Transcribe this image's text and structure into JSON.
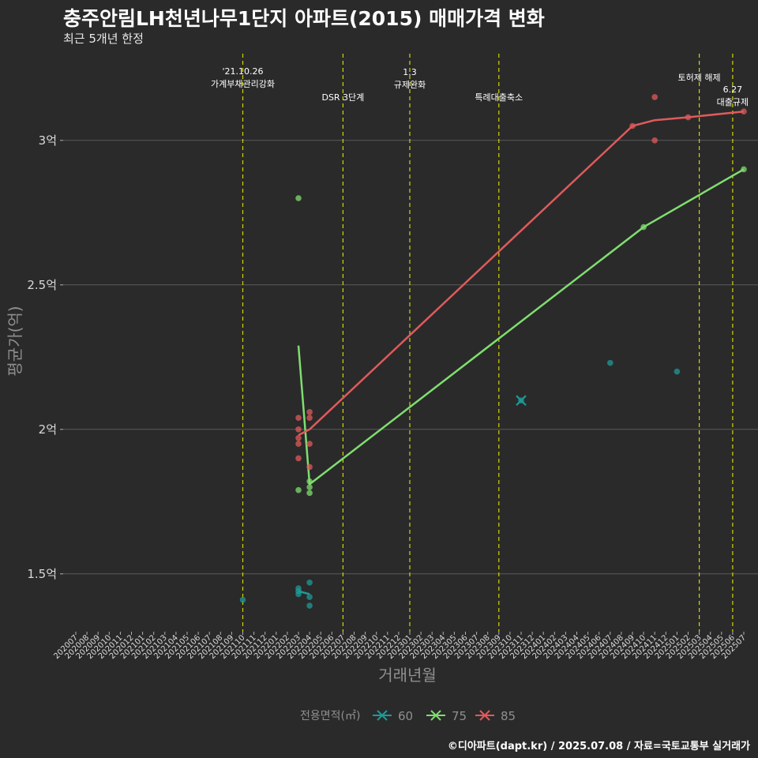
{
  "title": "충주안림LH천년나무1단지 아파트(2015) 매매가격 변화",
  "subtitle": "최근 5개년 한정",
  "caption": "©디아파트(dapt.kr) / 2025.07.08 / 자료=국토교통부 실거래가",
  "colors": {
    "background": "#2a2a2b",
    "grid": "#5a5a5a",
    "event_line": "#d4d400",
    "s60": "#1f9a96",
    "s75": "#7fde6e",
    "s85": "#e05a5a"
  },
  "chart_data": {
    "type": "line",
    "title": "충주안림LH천년나무1단지 아파트(2015) 매매가격 변화",
    "subtitle": "최근 5개년 한정",
    "xlabel": "거래년월",
    "ylabel": "평균가(억)",
    "ylim": [
      1.3,
      3.3
    ],
    "yticks": [
      1.5,
      2,
      2.5,
      3
    ],
    "yticklabels": [
      "1.5억",
      "2억",
      "2.5억",
      "3억"
    ],
    "xticks": [
      "202007",
      "202008",
      "202009",
      "202010",
      "202011",
      "202012",
      "202101",
      "202102",
      "202103",
      "202104",
      "202105",
      "202106",
      "202107",
      "202108",
      "202109",
      "202110",
      "202111",
      "202112",
      "202201",
      "202202",
      "202203",
      "202204",
      "202205",
      "202206",
      "202207",
      "202208",
      "202209",
      "202210",
      "202211",
      "202212",
      "202301",
      "202302",
      "202303",
      "202304",
      "202305",
      "202306",
      "202307",
      "202308",
      "202309",
      "202310",
      "202311",
      "202312",
      "202401",
      "202402",
      "202403",
      "202404",
      "202405",
      "202406",
      "202407",
      "202408",
      "202409",
      "202410",
      "202411",
      "202412",
      "202501",
      "202502",
      "202503",
      "202504",
      "202505",
      "202506",
      "202507"
    ],
    "legend_title": "전용면적(㎡)",
    "legend_position": "bottom",
    "series": [
      {
        "name": "60",
        "color": "#1f9a96",
        "line": [
          {
            "x": "202203",
            "y": 1.44
          },
          {
            "x": "202204",
            "y": 1.43
          }
        ],
        "points": [
          {
            "x": "202110",
            "y": 1.41
          },
          {
            "x": "202203",
            "y": 1.45
          },
          {
            "x": "202203",
            "y": 1.44
          },
          {
            "x": "202203",
            "y": 1.43
          },
          {
            "x": "202204",
            "y": 1.47
          },
          {
            "x": "202204",
            "y": 1.42
          },
          {
            "x": "202204",
            "y": 1.39
          },
          {
            "x": "202311",
            "y": 2.1
          },
          {
            "x": "202407",
            "y": 2.23
          },
          {
            "x": "202501",
            "y": 2.2
          }
        ],
        "cross": [
          {
            "x": "202311",
            "y": 2.1
          }
        ]
      },
      {
        "name": "75",
        "color": "#7fde6e",
        "line": [
          {
            "x": "202203",
            "y": 2.29
          },
          {
            "x": "202204",
            "y": 1.81
          },
          {
            "x": "202410",
            "y": 2.7
          },
          {
            "x": "202507",
            "y": 2.9
          }
        ],
        "points": [
          {
            "x": "202203",
            "y": 2.8
          },
          {
            "x": "202203",
            "y": 1.79
          },
          {
            "x": "202204",
            "y": 1.82
          },
          {
            "x": "202204",
            "y": 1.8
          },
          {
            "x": "202204",
            "y": 1.78
          },
          {
            "x": "202410",
            "y": 2.7
          },
          {
            "x": "202507",
            "y": 2.9
          }
        ]
      },
      {
        "name": "85",
        "color": "#e05a5a",
        "line": [
          {
            "x": "202203",
            "y": 1.98
          },
          {
            "x": "202204",
            "y": 2.0
          },
          {
            "x": "202409",
            "y": 3.05
          },
          {
            "x": "202411",
            "y": 3.07
          },
          {
            "x": "202502",
            "y": 3.08
          },
          {
            "x": "202507",
            "y": 3.1
          }
        ],
        "points": [
          {
            "x": "202203",
            "y": 2.04
          },
          {
            "x": "202203",
            "y": 2.0
          },
          {
            "x": "202203",
            "y": 1.97
          },
          {
            "x": "202203",
            "y": 1.95
          },
          {
            "x": "202203",
            "y": 1.9
          },
          {
            "x": "202204",
            "y": 2.06
          },
          {
            "x": "202204",
            "y": 2.04
          },
          {
            "x": "202204",
            "y": 1.95
          },
          {
            "x": "202204",
            "y": 1.87
          },
          {
            "x": "202409",
            "y": 3.05
          },
          {
            "x": "202411",
            "y": 3.15
          },
          {
            "x": "202411",
            "y": 3.0
          },
          {
            "x": "202502",
            "y": 3.08
          },
          {
            "x": "202507",
            "y": 3.1
          }
        ]
      }
    ],
    "annotations": [
      {
        "x": "202110",
        "lines": [
          "'21.10.26",
          "가계부채관리강화"
        ]
      },
      {
        "x": "202207",
        "lines": [
          "DSR 3단계"
        ]
      },
      {
        "x": "202301",
        "lines": [
          "1.3",
          "규제완화"
        ]
      },
      {
        "x": "202309",
        "lines": [
          "특례대출축소"
        ]
      },
      {
        "x": "202503",
        "lines": [
          "토허제 해제"
        ]
      },
      {
        "x": "202506",
        "lines": [
          "6.27",
          "대출규제"
        ]
      }
    ]
  }
}
